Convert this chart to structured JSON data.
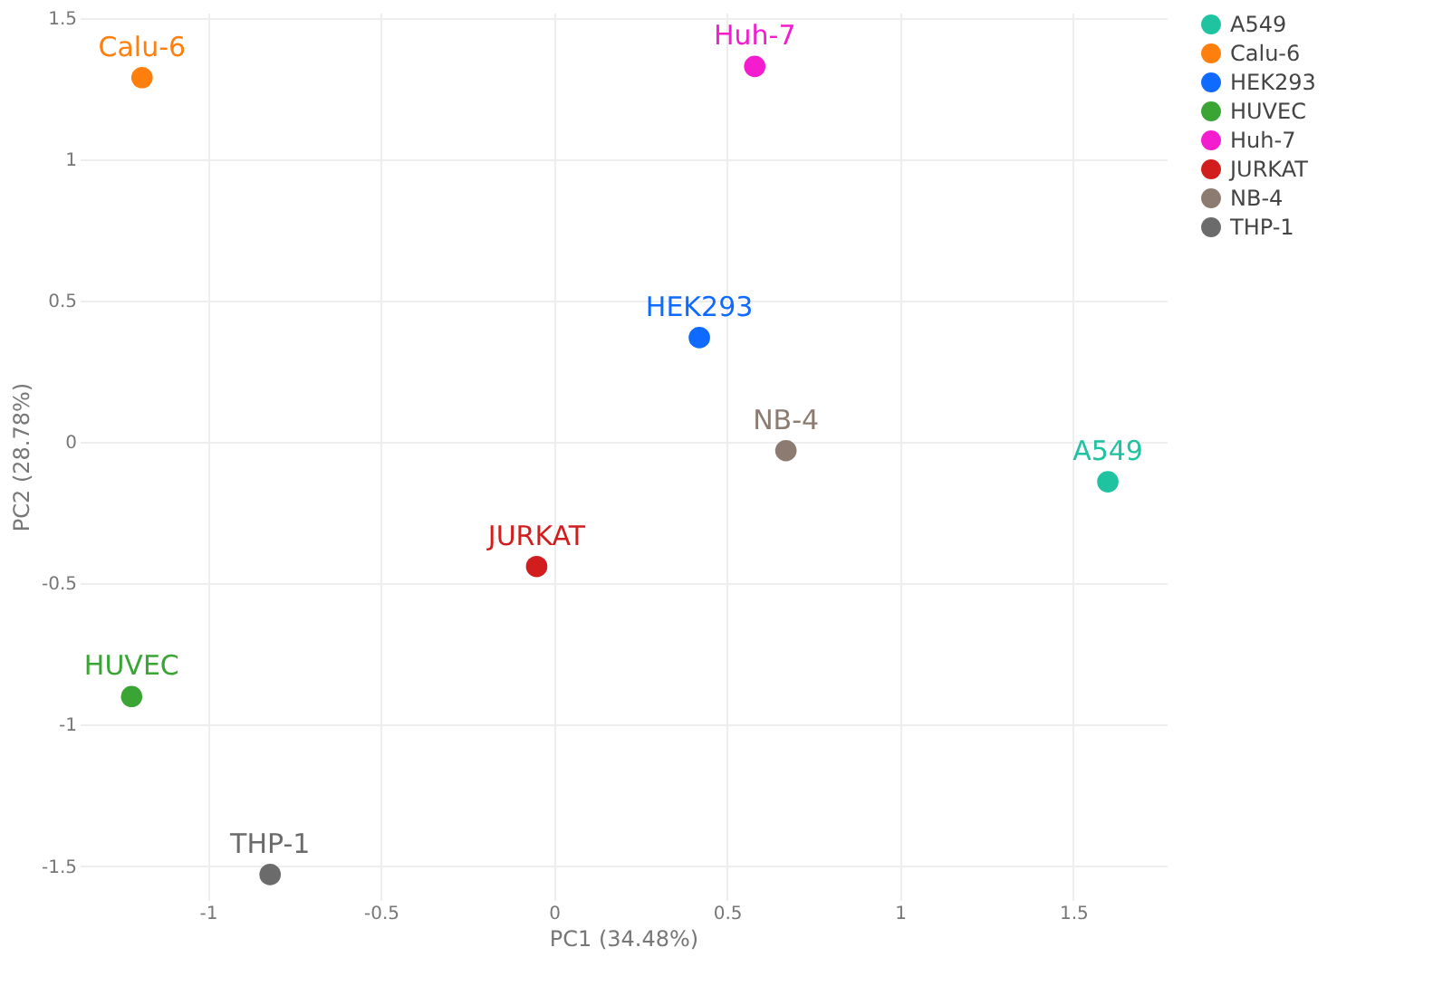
{
  "chart_data": {
    "type": "scatter",
    "xlabel": "PC1 (34.48%)",
    "ylabel": "PC2 (28.78%)",
    "series": [
      {
        "name": "A549",
        "color": "#1fc3a0",
        "x": [
          1.6
        ],
        "values": [
          -0.14
        ]
      },
      {
        "name": "Calu-6",
        "color": "#ff7f0e",
        "x": [
          -1.19
        ],
        "values": [
          1.29
        ]
      },
      {
        "name": "HEK293",
        "color": "#0f6bff",
        "x": [
          0.42
        ],
        "values": [
          0.37
        ]
      },
      {
        "name": "HUVEC",
        "color": "#3aa535",
        "x": [
          -1.22
        ],
        "values": [
          -0.9
        ]
      },
      {
        "name": "Huh-7",
        "color": "#f41ccf",
        "x": [
          0.58
        ],
        "values": [
          1.33
        ]
      },
      {
        "name": "JURKAT",
        "color": "#d11d1d",
        "x": [
          -0.05
        ],
        "values": [
          -0.44
        ]
      },
      {
        "name": "NB-4",
        "color": "#8c7b70",
        "x": [
          0.67
        ],
        "values": [
          -0.03
        ]
      },
      {
        "name": "THP-1",
        "color": "#6b6b6b",
        "x": [
          -0.82
        ],
        "values": [
          -1.53
        ]
      }
    ],
    "xlim": [
      -1.37,
      1.77
    ],
    "ylim": [
      -1.62,
      1.52
    ],
    "xticks": [
      -1,
      -0.5,
      0,
      0.5,
      1,
      1.5
    ],
    "yticks": [
      -1.5,
      -1,
      -0.5,
      0,
      0.5,
      1,
      1.5
    ],
    "grid": true,
    "legend": "top right",
    "marker": "circle"
  }
}
